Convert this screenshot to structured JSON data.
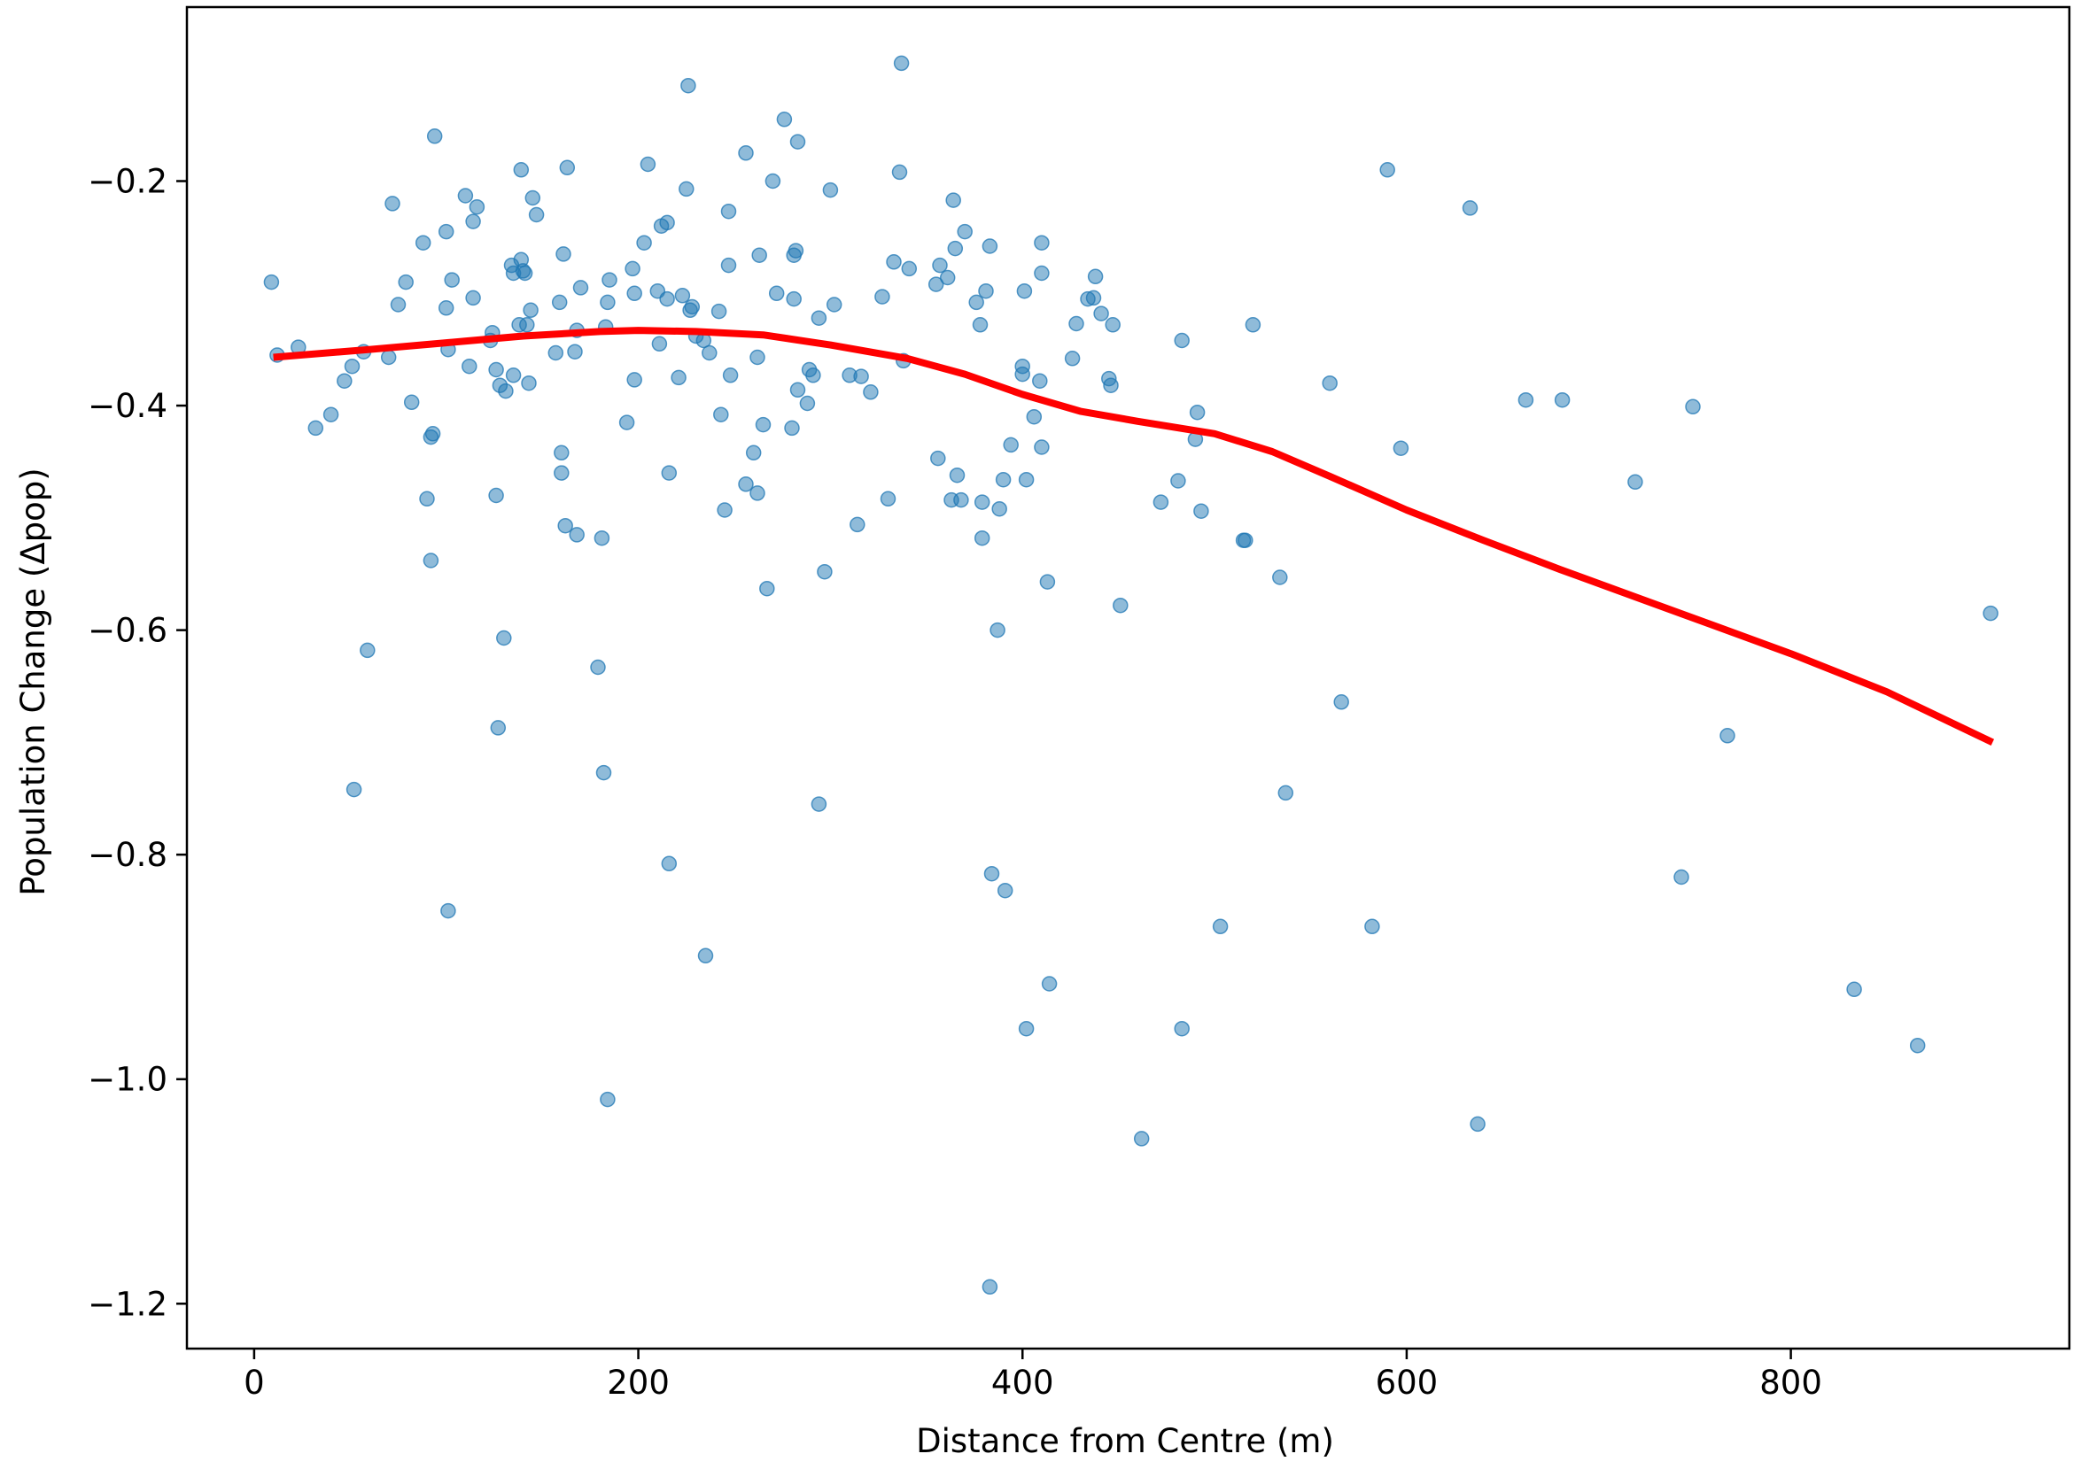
{
  "chart_data": {
    "type": "scatter",
    "title": "",
    "xlabel": "Distance from Centre (m)",
    "ylabel": "Population Change (Δpop)",
    "xlim": [
      -35,
      945
    ],
    "ylim": [
      -1.24,
      -0.045
    ],
    "x_ticks": [
      0,
      200,
      400,
      600,
      800
    ],
    "x_tick_labels": [
      "0",
      "200",
      "400",
      "600",
      "800"
    ],
    "y_ticks": [
      -0.2,
      -0.4,
      -0.6,
      -0.8,
      -1.0,
      -1.2
    ],
    "y_tick_labels": [
      "−0.2",
      "−0.4",
      "−0.6",
      "−0.8",
      "−1.0",
      "−1.2"
    ],
    "grid": false,
    "legend": "none",
    "series": [
      {
        "kind": "scatter",
        "color": "#1f77b4",
        "alpha": 0.5,
        "points": [
          [
            9,
            -0.29
          ],
          [
            12,
            -0.355
          ],
          [
            23,
            -0.348
          ],
          [
            32,
            -0.42
          ],
          [
            40,
            -0.408
          ],
          [
            47,
            -0.378
          ],
          [
            51,
            -0.365
          ],
          [
            52,
            -0.742
          ],
          [
            57,
            -0.352
          ],
          [
            59,
            -0.618
          ],
          [
            70,
            -0.357
          ],
          [
            72,
            -0.22
          ],
          [
            75,
            -0.31
          ],
          [
            79,
            -0.29
          ],
          [
            82,
            -0.397
          ],
          [
            88,
            -0.255
          ],
          [
            90,
            -0.483
          ],
          [
            92,
            -0.538
          ],
          [
            92,
            -0.428
          ],
          [
            93,
            -0.425
          ],
          [
            94,
            -0.16
          ],
          [
            100,
            -0.245
          ],
          [
            100,
            -0.313
          ],
          [
            101,
            -0.35
          ],
          [
            101,
            -0.85
          ],
          [
            103,
            -0.288
          ],
          [
            110,
            -0.213
          ],
          [
            112,
            -0.365
          ],
          [
            114,
            -0.236
          ],
          [
            114,
            -0.304
          ],
          [
            116,
            -0.223
          ],
          [
            123,
            -0.342
          ],
          [
            124,
            -0.335
          ],
          [
            126,
            -0.368
          ],
          [
            126,
            -0.48
          ],
          [
            127,
            -0.687
          ],
          [
            128,
            -0.382
          ],
          [
            130,
            -0.607
          ],
          [
            131,
            -0.387
          ],
          [
            134,
            -0.275
          ],
          [
            135,
            -0.282
          ],
          [
            135,
            -0.373
          ],
          [
            138,
            -0.328
          ],
          [
            139,
            -0.27
          ],
          [
            139,
            -0.19
          ],
          [
            140,
            -0.28
          ],
          [
            141,
            -0.282
          ],
          [
            142,
            -0.328
          ],
          [
            143,
            -0.38
          ],
          [
            144,
            -0.315
          ],
          [
            145,
            -0.215
          ],
          [
            147,
            -0.23
          ],
          [
            157,
            -0.353
          ],
          [
            159,
            -0.308
          ],
          [
            160,
            -0.442
          ],
          [
            160,
            -0.46
          ],
          [
            161,
            -0.265
          ],
          [
            162,
            -0.507
          ],
          [
            163,
            -0.188
          ],
          [
            167,
            -0.352
          ],
          [
            168,
            -0.333
          ],
          [
            168,
            -0.515
          ],
          [
            170,
            -0.295
          ],
          [
            179,
            -0.633
          ],
          [
            181,
            -0.518
          ],
          [
            182,
            -0.727
          ],
          [
            183,
            -0.33
          ],
          [
            184,
            -0.308
          ],
          [
            184,
            -1.018
          ],
          [
            185,
            -0.288
          ],
          [
            194,
            -0.415
          ],
          [
            197,
            -0.278
          ],
          [
            198,
            -0.3
          ],
          [
            198,
            -0.377
          ],
          [
            203,
            -0.255
          ],
          [
            205,
            -0.185
          ],
          [
            210,
            -0.298
          ],
          [
            211,
            -0.345
          ],
          [
            212,
            -0.24
          ],
          [
            215,
            -0.237
          ],
          [
            215,
            -0.305
          ],
          [
            216,
            -0.46
          ],
          [
            216,
            -0.808
          ],
          [
            221,
            -0.375
          ],
          [
            223,
            -0.302
          ],
          [
            225,
            -0.207
          ],
          [
            226,
            -0.115
          ],
          [
            227,
            -0.315
          ],
          [
            228,
            -0.312
          ],
          [
            230,
            -0.338
          ],
          [
            234,
            -0.342
          ],
          [
            235,
            -0.89
          ],
          [
            237,
            -0.353
          ],
          [
            242,
            -0.316
          ],
          [
            243,
            -0.408
          ],
          [
            245,
            -0.493
          ],
          [
            247,
            -0.227
          ],
          [
            247,
            -0.275
          ],
          [
            248,
            -0.373
          ],
          [
            256,
            -0.175
          ],
          [
            256,
            -0.47
          ],
          [
            260,
            -0.442
          ],
          [
            262,
            -0.357
          ],
          [
            262,
            -0.478
          ],
          [
            263,
            -0.266
          ],
          [
            265,
            -0.417
          ],
          [
            267,
            -0.563
          ],
          [
            270,
            -0.2
          ],
          [
            272,
            -0.3
          ],
          [
            276,
            -0.145
          ],
          [
            280,
            -0.42
          ],
          [
            281,
            -0.266
          ],
          [
            281,
            -0.305
          ],
          [
            282,
            -0.262
          ],
          [
            283,
            -0.165
          ],
          [
            283,
            -0.386
          ],
          [
            288,
            -0.398
          ],
          [
            289,
            -0.368
          ],
          [
            291,
            -0.373
          ],
          [
            294,
            -0.322
          ],
          [
            294,
            -0.755
          ],
          [
            297,
            -0.548
          ],
          [
            300,
            -0.208
          ],
          [
            302,
            -0.31
          ],
          [
            310,
            -0.373
          ],
          [
            314,
            -0.506
          ],
          [
            316,
            -0.374
          ],
          [
            321,
            -0.388
          ],
          [
            327,
            -0.303
          ],
          [
            330,
            -0.483
          ],
          [
            333,
            -0.272
          ],
          [
            336,
            -0.192
          ],
          [
            337,
            -0.095
          ],
          [
            338,
            -0.36
          ],
          [
            341,
            -0.278
          ],
          [
            355,
            -0.292
          ],
          [
            356,
            -0.447
          ],
          [
            357,
            -0.275
          ],
          [
            361,
            -0.286
          ],
          [
            363,
            -0.484
          ],
          [
            364,
            -0.217
          ],
          [
            365,
            -0.26
          ],
          [
            366,
            -0.462
          ],
          [
            368,
            -0.484
          ],
          [
            370,
            -0.245
          ],
          [
            376,
            -0.308
          ],
          [
            378,
            -0.328
          ],
          [
            379,
            -0.486
          ],
          [
            379,
            -0.518
          ],
          [
            381,
            -0.298
          ],
          [
            383,
            -1.185
          ],
          [
            383,
            -0.258
          ],
          [
            384,
            -0.817
          ],
          [
            387,
            -0.6
          ],
          [
            388,
            -0.492
          ],
          [
            390,
            -0.466
          ],
          [
            391,
            -0.832
          ],
          [
            394,
            -0.435
          ],
          [
            400,
            -0.365
          ],
          [
            400,
            -0.372
          ],
          [
            401,
            -0.298
          ],
          [
            402,
            -0.466
          ],
          [
            402,
            -0.955
          ],
          [
            406,
            -0.41
          ],
          [
            409,
            -0.378
          ],
          [
            410,
            -0.255
          ],
          [
            410,
            -0.282
          ],
          [
            410,
            -0.437
          ],
          [
            413,
            -0.557
          ],
          [
            414,
            -0.915
          ],
          [
            426,
            -0.358
          ],
          [
            428,
            -0.327
          ],
          [
            434,
            -0.305
          ],
          [
            437,
            -0.304
          ],
          [
            438,
            -0.285
          ],
          [
            441,
            -0.318
          ],
          [
            445,
            -0.376
          ],
          [
            446,
            -0.382
          ],
          [
            447,
            -0.328
          ],
          [
            451,
            -0.578
          ],
          [
            462,
            -1.053
          ],
          [
            472,
            -0.486
          ],
          [
            481,
            -0.467
          ],
          [
            483,
            -0.342
          ],
          [
            483,
            -0.955
          ],
          [
            490,
            -0.43
          ],
          [
            491,
            -0.406
          ],
          [
            493,
            -0.494
          ],
          [
            503,
            -0.864
          ],
          [
            515,
            -0.52
          ],
          [
            516,
            -0.52
          ],
          [
            520,
            -0.328
          ],
          [
            534,
            -0.553
          ],
          [
            537,
            -0.745
          ],
          [
            560,
            -0.38
          ],
          [
            566,
            -0.664
          ],
          [
            582,
            -0.864
          ],
          [
            590,
            -0.19
          ],
          [
            597,
            -0.438
          ],
          [
            633,
            -0.224
          ],
          [
            637,
            -1.04
          ],
          [
            662,
            -0.395
          ],
          [
            681,
            -0.395
          ],
          [
            719,
            -0.468
          ],
          [
            743,
            -0.82
          ],
          [
            749,
            -0.401
          ],
          [
            767,
            -0.694
          ],
          [
            833,
            -0.92
          ],
          [
            866,
            -0.97
          ],
          [
            904,
            -0.585
          ]
        ]
      },
      {
        "kind": "line",
        "color": "#ff0000",
        "points": [
          [
            10,
            -0.357
          ],
          [
            60,
            -0.35
          ],
          [
            100,
            -0.344
          ],
          [
            140,
            -0.338
          ],
          [
            180,
            -0.334
          ],
          [
            200,
            -0.333
          ],
          [
            230,
            -0.334
          ],
          [
            265,
            -0.337
          ],
          [
            300,
            -0.346
          ],
          [
            340,
            -0.358
          ],
          [
            370,
            -0.372
          ],
          [
            400,
            -0.39
          ],
          [
            430,
            -0.405
          ],
          [
            460,
            -0.414
          ],
          [
            500,
            -0.425
          ],
          [
            530,
            -0.441
          ],
          [
            560,
            -0.463
          ],
          [
            600,
            -0.493
          ],
          [
            640,
            -0.52
          ],
          [
            680,
            -0.546
          ],
          [
            720,
            -0.571
          ],
          [
            760,
            -0.596
          ],
          [
            800,
            -0.621
          ],
          [
            850,
            -0.655
          ],
          [
            905,
            -0.7
          ]
        ]
      }
    ]
  }
}
